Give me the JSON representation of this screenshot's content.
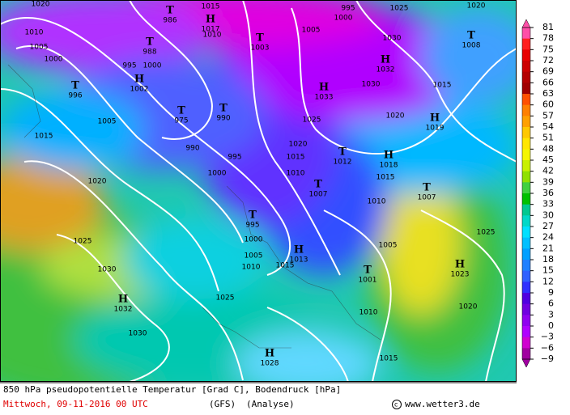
{
  "header": {
    "title": "850 hPa pseudopotentielle Temperatur [Grad C], Bodendruck [hPa]",
    "date": "Mittwoch, 09-11-2016  00 UTC",
    "model": "(GFS)",
    "run": "(Analyse)",
    "credit": "www.wetter3.de"
  },
  "legend": {
    "ticks": [
      81,
      78,
      75,
      72,
      69,
      66,
      63,
      60,
      57,
      54,
      51,
      48,
      45,
      42,
      39,
      36,
      33,
      30,
      27,
      24,
      21,
      18,
      15,
      12,
      9,
      6,
      3,
      0,
      {
        "value": -3,
        "label": "−3"
      },
      {
        "value": -6,
        "label": "−6"
      },
      {
        "value": -9,
        "label": "−9"
      }
    ],
    "colors": [
      "#ff4fa8",
      "#ff2020",
      "#e80000",
      "#cc0000",
      "#b40000",
      "#a00000",
      "#ff5000",
      "#ff8000",
      "#ffa000",
      "#ffc800",
      "#ffe600",
      "#f5f500",
      "#c8f000",
      "#90e000",
      "#40d040",
      "#00c000",
      "#00c890",
      "#00d8c8",
      "#00e0ff",
      "#00c0ff",
      "#00a0ff",
      "#2080ff",
      "#3060ff",
      "#3030ff",
      "#5000e0",
      "#7000e0",
      "#9000f0",
      "#b000ff",
      "#d000d0",
      "#a000a0"
    ]
  },
  "centers": [
    {
      "symbol": "T",
      "value": 986
    },
    {
      "symbol": "H",
      "value": 1017
    },
    {
      "symbol": "T",
      "value": 988
    },
    {
      "symbol": "H",
      "value": 1002
    },
    {
      "symbol": "T",
      "value": 996
    },
    {
      "symbol": "T",
      "value": 975
    },
    {
      "symbol": "T",
      "value": 990
    },
    {
      "symbol": "T",
      "value": 1003
    },
    {
      "symbol": "H",
      "value": 1032
    },
    {
      "symbol": "H",
      "value": 1033
    },
    {
      "symbol": "T",
      "value": 1008
    },
    {
      "symbol": "H",
      "value": 1019
    },
    {
      "symbol": "T",
      "value": 1012
    },
    {
      "symbol": "H",
      "value": 1018
    },
    {
      "symbol": "T",
      "value": 1007
    },
    {
      "symbol": "T",
      "value": 1007
    },
    {
      "symbol": "T",
      "value": 995
    },
    {
      "symbol": "H",
      "value": 1013
    },
    {
      "symbol": "T",
      "value": 1001
    },
    {
      "symbol": "H",
      "value": 1023
    },
    {
      "symbol": "H",
      "value": 1032
    },
    {
      "symbol": "H",
      "value": 1028
    }
  ],
  "isobar_labels": [
    1020,
    1010,
    1005,
    1000,
    1005,
    1015,
    1020,
    1025,
    1030,
    1030,
    990,
    995,
    1000,
    1005,
    995,
    1000,
    1025,
    1020,
    1030,
    1030,
    1015,
    1020,
    1025,
    1020,
    1015,
    1010,
    1015,
    1010,
    1005,
    1010,
    1005,
    1000,
    1015,
    1025,
    1010,
    1015,
    1020,
    1025,
    1000,
    995,
    1015,
    1010
  ]
}
